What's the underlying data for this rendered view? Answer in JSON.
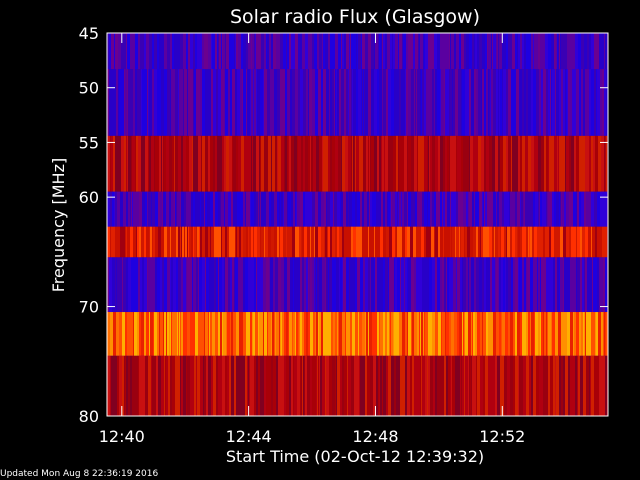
{
  "chart_data": {
    "type": "heatmap",
    "title": "Solar radio Flux (Glasgow)",
    "ylabel": "Frequency [MHz]",
    "xlabel": "Start Time (02-Oct-12 12:39:32)",
    "ylim": [
      80,
      45
    ],
    "y_ticks": [
      45,
      50,
      55,
      60,
      70,
      80
    ],
    "x_tick_labels": [
      "12:40",
      "12:44",
      "12:48",
      "12:52"
    ],
    "colors": {
      "low": "#3a00c8",
      "mid": "#a00010",
      "high": "#ff4000",
      "peak": "#ffb000"
    },
    "bands": [
      {
        "from": 45.0,
        "to": 48.3,
        "level": "low"
      },
      {
        "from": 48.3,
        "to": 54.4,
        "level": "low"
      },
      {
        "from": 54.4,
        "to": 59.5,
        "level": "mid"
      },
      {
        "from": 59.5,
        "to": 62.7,
        "level": "low"
      },
      {
        "from": 62.7,
        "to": 65.5,
        "level": "mid-high"
      },
      {
        "from": 65.5,
        "to": 70.5,
        "level": "low"
      },
      {
        "from": 70.5,
        "to": 74.5,
        "level": "high"
      },
      {
        "from": 74.5,
        "to": 80.0,
        "level": "mid"
      }
    ]
  },
  "footer": {
    "text": "Updated Mon Aug  8 22:36:19 2016"
  }
}
